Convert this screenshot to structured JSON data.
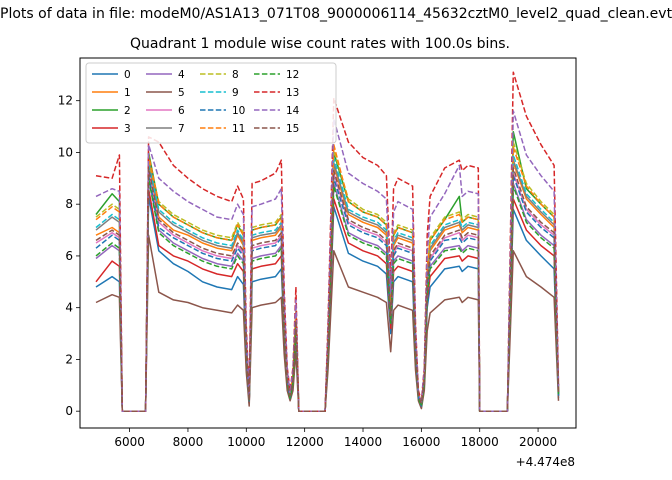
{
  "chart_data": {
    "type": "line",
    "suptitle": "Plots of data in file: modeM0/AS1A13_071T08_9000006114_45632cztM0_level2_quad_clean.evt",
    "title": "Quadrant 1 module wise count rates with 100.0s bins.",
    "xlabel": "",
    "ylabel": "",
    "x_offset_label": "+4.474e8",
    "xlim": [
      4300,
      21300
    ],
    "ylim": [
      -0.65,
      13.65
    ],
    "xticks": [
      6000,
      8000,
      10000,
      12000,
      14000,
      16000,
      18000,
      20000
    ],
    "yticks": [
      0,
      2,
      4,
      6,
      8,
      10,
      12
    ],
    "legend_position": "upper-left",
    "grid": false,
    "x": [
      4850,
      5400,
      5650,
      5750,
      6550,
      6650,
      7000,
      7500,
      8000,
      8500,
      9000,
      9500,
      9700,
      9900,
      10000,
      10100,
      10200,
      10500,
      11000,
      11200,
      11300,
      11400,
      11500,
      11600,
      11700,
      11800,
      12700,
      12800,
      13000,
      13500,
      14000,
      14500,
      14800,
      14950,
      15050,
      15200,
      15700,
      15800,
      15900,
      16000,
      16100,
      16200,
      16300,
      16800,
      17300,
      17400,
      17600,
      17950,
      18000,
      18950,
      19000,
      19150,
      19600,
      20100,
      20550,
      20700
    ],
    "series": [
      {
        "name": "0",
        "color": "#1f77b4",
        "dash": false,
        "values": [
          4.8,
          5.2,
          5.0,
          0.0,
          0.0,
          8.3,
          6.2,
          5.7,
          5.4,
          5.0,
          4.8,
          4.7,
          5.2,
          4.9,
          2.0,
          0.3,
          5.0,
          5.1,
          5.2,
          5.5,
          3.0,
          1.0,
          0.5,
          1.0,
          3.0,
          0.0,
          0.0,
          2.0,
          7.9,
          6.1,
          5.8,
          5.6,
          5.3,
          3.0,
          5.0,
          5.2,
          5.0,
          2.0,
          0.5,
          0.2,
          1.0,
          4.0,
          4.8,
          5.5,
          5.6,
          5.4,
          5.6,
          5.5,
          0.0,
          0.0,
          2.0,
          7.8,
          6.6,
          6.0,
          5.5,
          0.5
        ]
      },
      {
        "name": "1",
        "color": "#ff7f0e",
        "dash": false,
        "values": [
          6.8,
          7.1,
          6.9,
          0.0,
          0.0,
          9.6,
          7.5,
          7.0,
          6.8,
          6.5,
          6.3,
          6.2,
          6.8,
          6.4,
          2.5,
          0.4,
          6.6,
          6.7,
          6.8,
          7.1,
          3.5,
          1.3,
          0.6,
          1.3,
          3.6,
          0.0,
          0.0,
          2.6,
          9.5,
          7.6,
          7.3,
          7.1,
          6.8,
          3.8,
          6.4,
          6.7,
          6.5,
          2.6,
          0.6,
          0.3,
          1.3,
          5.1,
          6.2,
          7.0,
          7.2,
          6.9,
          7.1,
          7.0,
          0.0,
          0.0,
          2.6,
          9.6,
          8.2,
          7.6,
          7.1,
          0.7
        ]
      },
      {
        "name": "2",
        "color": "#2ca02c",
        "dash": false,
        "values": [
          7.6,
          8.4,
          8.1,
          0.0,
          0.0,
          10.0,
          8.0,
          7.5,
          7.2,
          6.9,
          6.7,
          6.6,
          7.2,
          6.8,
          2.7,
          0.5,
          7.0,
          7.1,
          7.2,
          7.5,
          3.8,
          1.4,
          0.7,
          1.4,
          3.8,
          0.0,
          0.0,
          2.7,
          10.0,
          8.1,
          7.7,
          7.5,
          7.2,
          4.0,
          6.8,
          7.1,
          6.9,
          2.7,
          0.7,
          0.3,
          1.4,
          5.4,
          6.6,
          7.4,
          8.3,
          7.3,
          7.5,
          7.4,
          0.0,
          0.0,
          2.8,
          10.8,
          8.6,
          8.0,
          7.5,
          0.8
        ]
      },
      {
        "name": "3",
        "color": "#d62728",
        "dash": false,
        "values": [
          5.0,
          5.8,
          5.6,
          0.0,
          0.0,
          8.6,
          6.4,
          6.0,
          5.8,
          5.5,
          5.3,
          5.2,
          5.7,
          5.4,
          2.1,
          0.3,
          5.5,
          5.6,
          5.7,
          6.0,
          3.1,
          1.1,
          0.5,
          1.1,
          3.1,
          0.0,
          0.0,
          2.2,
          8.2,
          6.5,
          6.2,
          6.0,
          5.7,
          3.2,
          5.4,
          5.6,
          5.4,
          2.2,
          0.5,
          0.2,
          1.1,
          4.3,
          5.2,
          5.9,
          6.0,
          5.8,
          6.0,
          5.9,
          0.0,
          0.0,
          2.2,
          8.2,
          7.0,
          6.4,
          6.0,
          0.6
        ]
      },
      {
        "name": "4",
        "color": "#9467bd",
        "dash": false,
        "values": [
          5.9,
          6.4,
          6.2,
          0.0,
          0.0,
          9.0,
          7.0,
          6.5,
          6.2,
          5.9,
          5.7,
          5.6,
          6.1,
          5.8,
          2.3,
          0.4,
          5.9,
          6.0,
          6.1,
          6.4,
          3.3,
          1.2,
          0.5,
          1.2,
          3.3,
          0.0,
          0.0,
          2.3,
          8.8,
          6.9,
          6.6,
          6.4,
          6.1,
          3.4,
          5.8,
          6.0,
          5.8,
          2.3,
          0.5,
          0.2,
          1.2,
          4.6,
          5.6,
          6.3,
          6.4,
          6.2,
          6.4,
          6.3,
          0.0,
          0.0,
          2.4,
          8.8,
          7.4,
          6.8,
          6.4,
          0.6
        ]
      },
      {
        "name": "5",
        "color": "#8c564b",
        "dash": false,
        "values": [
          4.2,
          4.5,
          4.4,
          0.0,
          0.0,
          6.8,
          4.6,
          4.3,
          4.2,
          4.0,
          3.9,
          3.8,
          4.1,
          3.9,
          1.5,
          0.2,
          4.0,
          4.1,
          4.2,
          4.4,
          2.2,
          0.8,
          0.4,
          0.8,
          2.3,
          0.0,
          0.0,
          1.6,
          6.2,
          4.8,
          4.6,
          4.4,
          4.2,
          2.3,
          3.9,
          4.1,
          3.9,
          1.6,
          0.4,
          0.1,
          0.8,
          3.1,
          3.8,
          4.3,
          4.4,
          4.2,
          4.4,
          4.3,
          0.0,
          0.0,
          1.6,
          6.2,
          5.2,
          4.8,
          4.4,
          0.4
        ]
      },
      {
        "name": "6",
        "color": "#e377c2",
        "dash": false,
        "values": [
          6.5,
          6.9,
          6.7,
          0.0,
          0.0,
          9.3,
          7.3,
          6.8,
          6.5,
          6.2,
          6.0,
          5.9,
          6.4,
          6.1,
          2.4,
          0.4,
          6.3,
          6.4,
          6.5,
          6.8,
          3.4,
          1.2,
          0.6,
          1.2,
          3.5,
          0.0,
          0.0,
          2.5,
          9.2,
          7.3,
          7.0,
          6.8,
          6.5,
          3.6,
          6.1,
          6.4,
          6.2,
          2.5,
          0.6,
          0.3,
          1.2,
          4.9,
          5.9,
          6.7,
          6.9,
          6.6,
          6.8,
          6.7,
          0.0,
          0.0,
          2.5,
          9.2,
          7.8,
          7.2,
          6.8,
          0.7
        ]
      },
      {
        "name": "7",
        "color": "#7f7f7f",
        "dash": false,
        "values": [
          7.0,
          7.5,
          7.3,
          0.0,
          0.0,
          9.8,
          7.7,
          7.2,
          6.9,
          6.6,
          6.4,
          6.3,
          6.9,
          6.5,
          2.6,
          0.4,
          6.7,
          6.8,
          6.9,
          7.2,
          3.6,
          1.3,
          0.6,
          1.3,
          3.7,
          0.0,
          0.0,
          2.6,
          9.6,
          7.7,
          7.4,
          7.2,
          6.9,
          3.8,
          6.5,
          6.8,
          6.6,
          2.6,
          0.6,
          0.3,
          1.3,
          5.2,
          6.3,
          7.1,
          7.3,
          7.0,
          7.2,
          7.1,
          0.0,
          0.0,
          2.7,
          9.7,
          8.3,
          7.7,
          7.2,
          0.7
        ]
      },
      {
        "name": "8",
        "color": "#bcbd22",
        "dash": true,
        "values": [
          7.5,
          8.0,
          7.8,
          0.0,
          0.0,
          9.7,
          8.1,
          7.6,
          7.3,
          7.0,
          6.8,
          6.7,
          7.3,
          6.9,
          2.7,
          0.5,
          7.1,
          7.2,
          7.3,
          7.6,
          3.8,
          1.4,
          0.7,
          1.4,
          3.9,
          0.0,
          0.0,
          2.8,
          10.1,
          8.2,
          7.8,
          7.6,
          7.3,
          4.0,
          6.9,
          7.2,
          7.0,
          2.8,
          0.7,
          0.3,
          1.4,
          5.5,
          6.7,
          7.5,
          7.7,
          7.4,
          7.6,
          7.5,
          0.0,
          0.0,
          2.8,
          10.4,
          8.8,
          8.1,
          7.6,
          0.8
        ]
      },
      {
        "name": "9",
        "color": "#17becf",
        "dash": true,
        "values": [
          7.1,
          7.6,
          7.4,
          0.0,
          0.0,
          9.5,
          7.8,
          7.3,
          7.0,
          6.7,
          6.5,
          6.4,
          7.0,
          6.6,
          2.6,
          0.4,
          6.8,
          6.9,
          7.0,
          7.3,
          3.7,
          1.3,
          0.6,
          1.3,
          3.7,
          0.0,
          0.0,
          2.7,
          9.8,
          7.8,
          7.5,
          7.3,
          7.0,
          3.9,
          6.6,
          6.9,
          6.7,
          2.7,
          0.6,
          0.3,
          1.3,
          5.3,
          6.4,
          7.2,
          7.4,
          7.1,
          7.3,
          7.2,
          0.0,
          0.0,
          2.7,
          9.9,
          8.4,
          7.8,
          7.3,
          0.7
        ]
      },
      {
        "name": "10",
        "color": "#1f77b4",
        "dash": true,
        "values": [
          6.3,
          6.8,
          6.6,
          0.0,
          0.0,
          9.1,
          7.1,
          6.7,
          6.4,
          6.1,
          5.9,
          5.8,
          6.3,
          6.0,
          2.4,
          0.4,
          6.2,
          6.3,
          6.4,
          6.7,
          3.4,
          1.2,
          0.5,
          1.2,
          3.4,
          0.0,
          0.0,
          2.4,
          9.0,
          7.2,
          6.9,
          6.7,
          6.4,
          3.5,
          6.0,
          6.3,
          6.1,
          2.4,
          0.5,
          0.2,
          1.2,
          4.8,
          5.8,
          6.6,
          6.7,
          6.5,
          6.7,
          6.6,
          0.0,
          0.0,
          2.5,
          9.1,
          7.7,
          7.1,
          6.7,
          0.6
        ]
      },
      {
        "name": "11",
        "color": "#ff7f0e",
        "dash": true,
        "values": [
          7.4,
          7.9,
          7.7,
          0.0,
          0.0,
          9.9,
          8.0,
          7.5,
          7.2,
          6.9,
          6.7,
          6.6,
          7.2,
          6.8,
          2.7,
          0.5,
          7.0,
          7.1,
          7.2,
          7.5,
          3.8,
          1.4,
          0.7,
          1.4,
          3.8,
          0.0,
          0.0,
          2.7,
          10.3,
          8.1,
          7.7,
          7.5,
          7.2,
          4.0,
          6.8,
          7.1,
          6.9,
          2.7,
          0.7,
          0.3,
          1.4,
          5.4,
          6.6,
          7.4,
          7.6,
          7.3,
          7.5,
          7.4,
          0.0,
          0.0,
          2.8,
          10.2,
          8.7,
          8.0,
          7.5,
          0.8
        ]
      },
      {
        "name": "12",
        "color": "#2ca02c",
        "dash": true,
        "values": [
          6.0,
          6.5,
          6.3,
          0.0,
          0.0,
          9.0,
          6.9,
          6.4,
          6.1,
          5.8,
          5.6,
          5.5,
          6.0,
          5.7,
          2.3,
          0.4,
          5.8,
          5.9,
          6.0,
          6.3,
          3.2,
          1.1,
          0.5,
          1.1,
          3.2,
          0.0,
          0.0,
          2.3,
          8.7,
          6.8,
          6.5,
          6.3,
          6.0,
          3.4,
          5.7,
          5.9,
          5.7,
          2.3,
          0.5,
          0.2,
          1.1,
          4.5,
          5.5,
          6.2,
          6.3,
          6.1,
          6.3,
          6.2,
          0.0,
          0.0,
          2.3,
          8.7,
          7.3,
          6.7,
          6.3,
          0.6
        ]
      },
      {
        "name": "13",
        "color": "#d62728",
        "dash": true,
        "values": [
          9.1,
          9.0,
          9.9,
          0.0,
          0.0,
          10.6,
          10.4,
          9.5,
          9.0,
          8.6,
          8.3,
          8.1,
          8.7,
          8.2,
          3.3,
          0.6,
          8.8,
          8.9,
          9.2,
          9.7,
          4.7,
          1.7,
          0.8,
          1.7,
          4.8,
          0.0,
          0.0,
          3.4,
          12.1,
          10.4,
          9.8,
          9.5,
          9.1,
          5.1,
          8.6,
          9.0,
          8.7,
          3.4,
          0.8,
          0.4,
          1.7,
          6.8,
          8.3,
          9.4,
          9.7,
          9.3,
          9.5,
          9.4,
          0.0,
          0.0,
          3.5,
          13.1,
          11.4,
          10.3,
          9.5,
          1.0
        ]
      },
      {
        "name": "14",
        "color": "#9467bd",
        "dash": true,
        "values": [
          8.3,
          8.6,
          8.5,
          0.0,
          0.0,
          10.3,
          9.0,
          8.5,
          8.1,
          7.8,
          7.5,
          7.4,
          8.0,
          7.6,
          3.0,
          0.5,
          7.9,
          8.0,
          8.2,
          8.6,
          4.3,
          1.6,
          0.7,
          1.6,
          4.3,
          0.0,
          0.0,
          3.1,
          11.3,
          9.2,
          8.8,
          8.5,
          8.2,
          4.6,
          7.7,
          8.1,
          7.8,
          3.1,
          0.7,
          0.3,
          1.6,
          6.1,
          7.5,
          8.4,
          9.5,
          8.3,
          8.5,
          8.4,
          0.0,
          0.0,
          3.2,
          11.6,
          9.9,
          9.1,
          8.5,
          0.9
        ]
      },
      {
        "name": "15",
        "color": "#8c564b",
        "dash": true,
        "values": [
          6.6,
          7.0,
          6.8,
          0.0,
          0.0,
          9.4,
          7.4,
          6.9,
          6.6,
          6.3,
          6.1,
          6.0,
          6.5,
          6.2,
          2.5,
          0.4,
          6.4,
          6.5,
          6.6,
          6.9,
          3.5,
          1.2,
          0.6,
          1.2,
          3.5,
          0.0,
          0.0,
          2.5,
          9.3,
          7.4,
          7.1,
          6.9,
          6.6,
          3.7,
          6.2,
          6.5,
          6.3,
          2.5,
          0.6,
          0.3,
          1.2,
          5.0,
          6.0,
          6.8,
          7.0,
          6.7,
          6.9,
          6.8,
          0.0,
          0.0,
          2.6,
          9.4,
          7.9,
          7.3,
          6.9,
          0.7
        ]
      }
    ]
  }
}
